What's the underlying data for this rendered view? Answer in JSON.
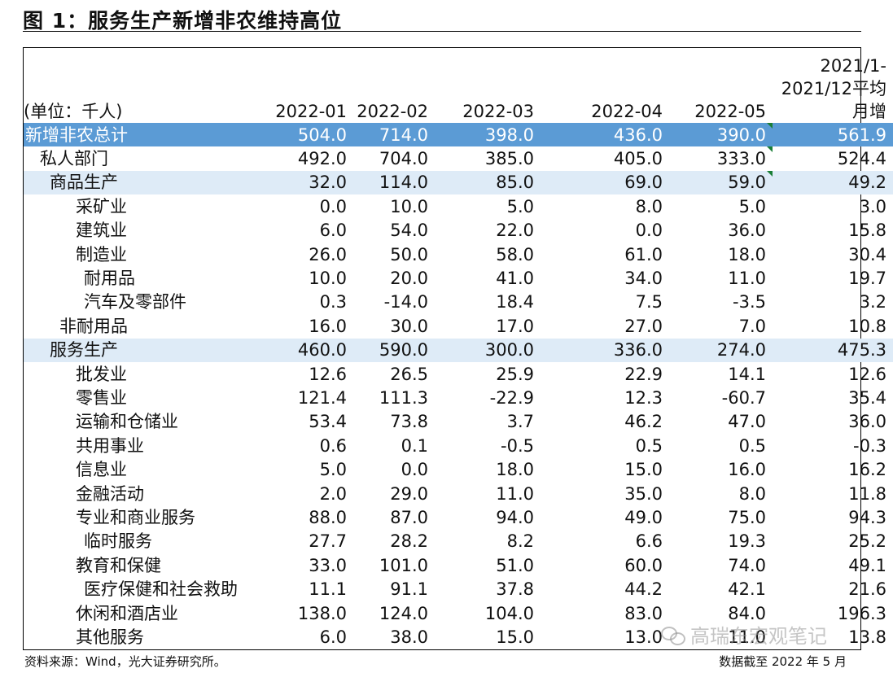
{
  "title": "图 1：服务生产新增非农维持高位",
  "table": {
    "unit": "(单位：千人)",
    "headers": [
      "2022-01",
      "2022-02",
      "2022-03",
      "2022-04",
      "2022-05"
    ],
    "avg_header": [
      "2021/1-",
      "2021/12平均",
      "月增"
    ],
    "rows": [
      {
        "label": "新增非农总计",
        "values": [
          "504.0",
          "714.0",
          "398.0",
          "436.0",
          "390.0",
          "561.9"
        ]
      },
      {
        "label": "私人部门",
        "values": [
          "492.0",
          "704.0",
          "385.0",
          "405.0",
          "333.0",
          "524.4"
        ]
      },
      {
        "label": "商品生产",
        "values": [
          "32.0",
          "114.0",
          "85.0",
          "69.0",
          "59.0",
          "49.2"
        ]
      },
      {
        "label": "采矿业",
        "values": [
          "0.0",
          "10.0",
          "5.0",
          "8.0",
          "5.0",
          "3.0"
        ]
      },
      {
        "label": "建筑业",
        "values": [
          "6.0",
          "54.0",
          "22.0",
          "0.0",
          "36.0",
          "15.8"
        ]
      },
      {
        "label": "制造业",
        "values": [
          "26.0",
          "50.0",
          "58.0",
          "61.0",
          "18.0",
          "30.4"
        ]
      },
      {
        "label": "耐用品",
        "values": [
          "10.0",
          "20.0",
          "41.0",
          "34.0",
          "11.0",
          "19.7"
        ]
      },
      {
        "label": "汽车及零部件",
        "values": [
          "0.3",
          "-14.0",
          "18.4",
          "7.5",
          "-3.5",
          "3.2"
        ]
      },
      {
        "label": "非耐用品",
        "values": [
          "16.0",
          "30.0",
          "17.0",
          "27.0",
          "7.0",
          "10.8"
        ]
      },
      {
        "label": "服务生产",
        "values": [
          "460.0",
          "590.0",
          "300.0",
          "336.0",
          "274.0",
          "475.3"
        ]
      },
      {
        "label": "批发业",
        "values": [
          "12.6",
          "26.5",
          "25.9",
          "22.9",
          "14.1",
          "12.6"
        ]
      },
      {
        "label": "零售业",
        "values": [
          "121.4",
          "111.3",
          "-22.9",
          "12.3",
          "-60.7",
          "35.4"
        ]
      },
      {
        "label": "运输和仓储业",
        "values": [
          "53.4",
          "73.8",
          "3.7",
          "46.2",
          "47.0",
          "36.0"
        ]
      },
      {
        "label": "共用事业",
        "values": [
          "0.6",
          "0.1",
          "-0.5",
          "0.5",
          "0.5",
          "-0.3"
        ]
      },
      {
        "label": "信息业",
        "values": [
          "5.0",
          "0.0",
          "18.0",
          "15.0",
          "16.0",
          "16.2"
        ]
      },
      {
        "label": "金融活动",
        "values": [
          "2.0",
          "29.0",
          "11.0",
          "35.0",
          "8.0",
          "11.8"
        ]
      },
      {
        "label": "专业和商业服务",
        "values": [
          "88.0",
          "87.0",
          "94.0",
          "49.0",
          "75.0",
          "94.3"
        ]
      },
      {
        "label": "临时服务",
        "values": [
          "27.7",
          "28.2",
          "8.2",
          "6.6",
          "19.3",
          "25.2"
        ]
      },
      {
        "label": "教育和保健",
        "values": [
          "33.0",
          "101.0",
          "51.0",
          "60.0",
          "74.0",
          "49.1"
        ]
      },
      {
        "label": "医疗保健和社会救助",
        "values": [
          "11.1",
          "91.1",
          "37.8",
          "44.2",
          "42.1",
          "21.6"
        ]
      },
      {
        "label": "休闲和酒店业",
        "values": [
          "138.0",
          "124.0",
          "104.0",
          "83.0",
          "84.0",
          "196.3"
        ]
      },
      {
        "label": "其他服务",
        "values": [
          "6.0",
          "38.0",
          "15.0",
          "13.0",
          "11.0",
          "13.8"
        ]
      }
    ]
  },
  "source": "资料来源：Wind，光大证券研究所。",
  "cutoff": "数据截至 2022 年 5 月",
  "watermark": "高瑞东宏观笔记",
  "colors": {
    "total_bg": "#5b9bd5",
    "group_bg": "#deebf7",
    "flag": "#1a7f37"
  }
}
